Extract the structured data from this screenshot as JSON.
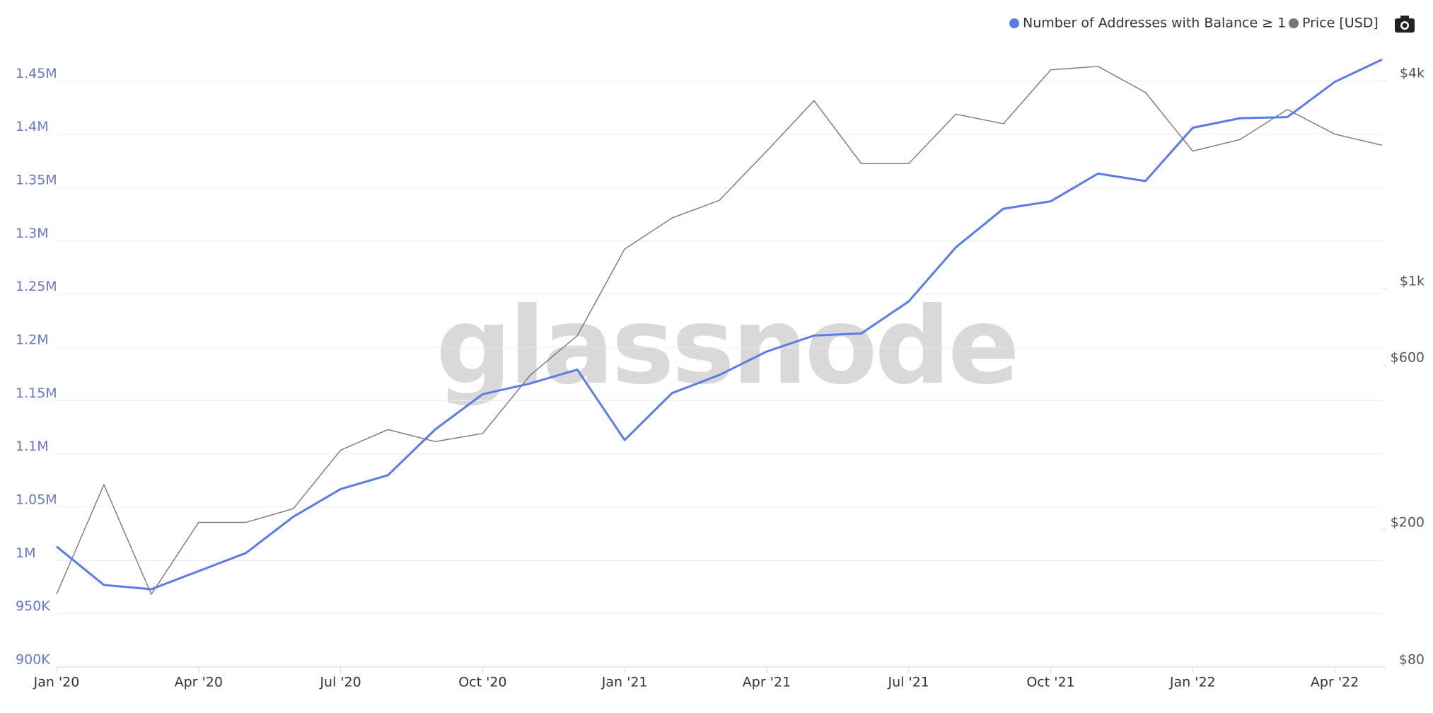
{
  "chart_data": {
    "type": "line",
    "watermark": "glassnode",
    "x": [
      "2020-01",
      "2020-02",
      "2020-03",
      "2020-04",
      "2020-05",
      "2020-06",
      "2020-07",
      "2020-08",
      "2020-09",
      "2020-10",
      "2020-11",
      "2020-12",
      "2021-01",
      "2021-02",
      "2021-03",
      "2021-04",
      "2021-05",
      "2021-06",
      "2021-07",
      "2021-08",
      "2021-09",
      "2021-10",
      "2021-11",
      "2021-12",
      "2022-01",
      "2022-02",
      "2022-03",
      "2022-04",
      "2022-05"
    ],
    "series": [
      {
        "name": "Number of Addresses with Balance ≥ 1",
        "color": "#5b7be9",
        "axis": "y",
        "values": [
          1013000,
          977000,
          973000,
          990000,
          1007000,
          1041000,
          1067000,
          1080000,
          1123000,
          1156000,
          1166000,
          1179000,
          1113000,
          1157000,
          1174000,
          1196000,
          1211000,
          1213000,
          1243000,
          1294000,
          1330000,
          1337000,
          1363000,
          1356000,
          1406000,
          1415000,
          1416000,
          1449000,
          1470000
        ]
      },
      {
        "name": "Price [USD]",
        "color": "#777777",
        "axis": "y2",
        "values": [
          130,
          270,
          130,
          210,
          210,
          230,
          340,
          390,
          360,
          380,
          560,
          730,
          1300,
          1600,
          1800,
          2500,
          3500,
          2300,
          2300,
          3200,
          3000,
          4300,
          4400,
          3700,
          2500,
          2700,
          3300,
          2800,
          2600
        ]
      }
    ],
    "xlim": [
      "2020-01",
      "2022-05"
    ],
    "xticks": [
      {
        "value": "2020-01",
        "label": "Jan '20"
      },
      {
        "value": "2020-04",
        "label": "Apr '20"
      },
      {
        "value": "2020-07",
        "label": "Jul '20"
      },
      {
        "value": "2020-10",
        "label": "Oct '20"
      },
      {
        "value": "2021-01",
        "label": "Jan '21"
      },
      {
        "value": "2021-04",
        "label": "Apr '21"
      },
      {
        "value": "2021-07",
        "label": "Jul '21"
      },
      {
        "value": "2021-10",
        "label": "Oct '21"
      },
      {
        "value": "2022-01",
        "label": "Jan '22"
      },
      {
        "value": "2022-04",
        "label": "Apr '22"
      }
    ],
    "ylim": [
      900000,
      1500000
    ],
    "yticks": [
      {
        "value": 900000,
        "label": "900K"
      },
      {
        "value": 950000,
        "label": "950K"
      },
      {
        "value": 1000000,
        "label": "1M"
      },
      {
        "value": 1050000,
        "label": "1.05M"
      },
      {
        "value": 1100000,
        "label": "1.1M"
      },
      {
        "value": 1150000,
        "label": "1.15M"
      },
      {
        "value": 1200000,
        "label": "1.2M"
      },
      {
        "value": 1250000,
        "label": "1.25M"
      },
      {
        "value": 1300000,
        "label": "1.3M"
      },
      {
        "value": 1350000,
        "label": "1.35M"
      },
      {
        "value": 1400000,
        "label": "1.4M"
      },
      {
        "value": 1450000,
        "label": "1.45M"
      }
    ],
    "y2lim": [
      80,
      5700
    ],
    "y2ticks": [
      {
        "value": 80,
        "label": "$80"
      },
      {
        "value": 200,
        "label": "$200"
      },
      {
        "value": 600,
        "label": "$600"
      },
      {
        "value": 1000,
        "label": "$1k"
      },
      {
        "value": 4000,
        "label": "$4k"
      }
    ],
    "y2log": true,
    "grid": true
  }
}
